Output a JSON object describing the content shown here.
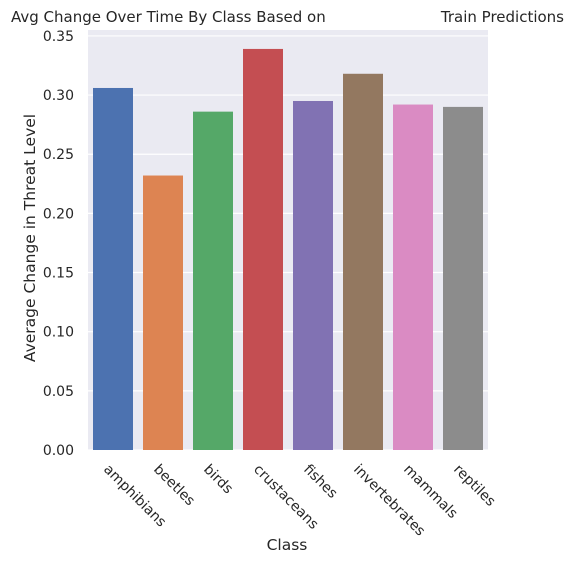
{
  "chart_data": {
    "type": "bar",
    "title_left": "Avg Change Over Time By Class Based on",
    "title_right": "Train Predictions",
    "xlabel": "Class",
    "ylabel": "Average Change in Threat Level",
    "categories": [
      "amphibians",
      "beetles",
      "birds",
      "crustaceans",
      "fishes",
      "invertebrates",
      "mammals",
      "reptiles"
    ],
    "values": [
      0.306,
      0.232,
      0.286,
      0.339,
      0.295,
      0.318,
      0.292,
      0.29
    ],
    "colors": [
      "#4c72b0",
      "#dd8452",
      "#55a868",
      "#c44e52",
      "#8172b3",
      "#937860",
      "#da8bc3",
      "#8c8c8c"
    ],
    "ylim": [
      0,
      0.355
    ],
    "yticks": [
      "0.00",
      "0.05",
      "0.10",
      "0.15",
      "0.20",
      "0.25",
      "0.30",
      "0.35"
    ],
    "background": "#eaeaf2",
    "grid": true
  }
}
